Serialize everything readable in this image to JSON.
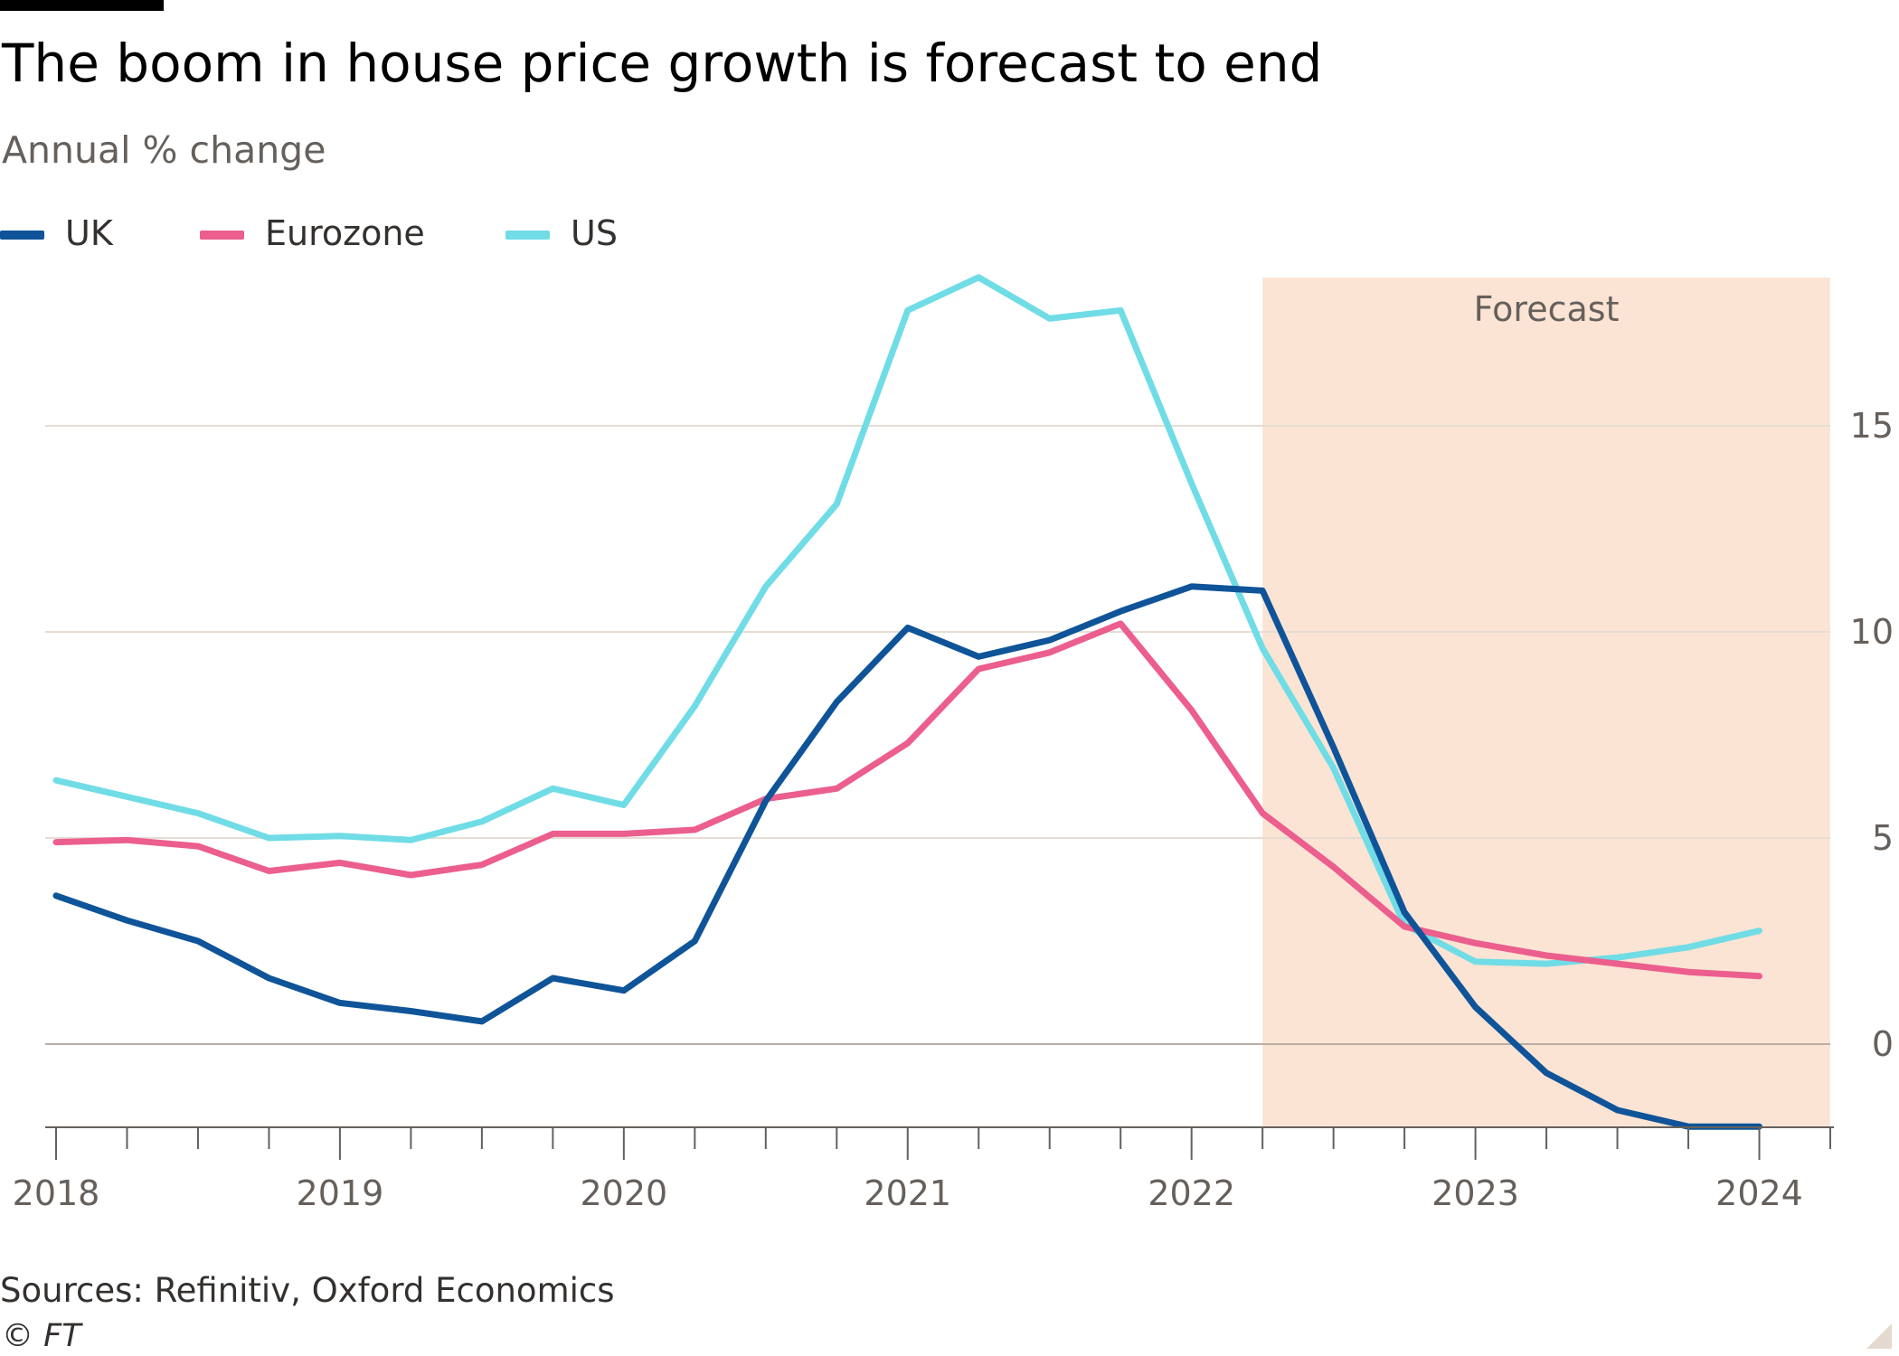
{
  "header": {
    "title": "The boom in house price growth is forecast to end",
    "subtitle": "Annual % change"
  },
  "legend": [
    {
      "name": "UK",
      "color": "#0f5499"
    },
    {
      "name": "Eurozone",
      "color": "#eb5e8d"
    },
    {
      "name": "US",
      "color": "#70dce6"
    }
  ],
  "footer": {
    "source": "Sources: Refinitiv, Oxford Economics",
    "copyright": "© FT"
  },
  "colors": {
    "uk": "#0f5499",
    "eurozone": "#eb5e8d",
    "us": "#70dce6",
    "forecast_shade": "#fbe4d4",
    "grid": "#e6ddd3",
    "zero_line": "#b8aea6",
    "tick_text": "#66605c"
  },
  "chart_data": {
    "type": "line",
    "title": "The boom in house price growth is forecast to end",
    "subtitle": "Annual % change",
    "x": [
      "2018 Q1",
      "2018 Q2",
      "2018 Q3",
      "2018 Q4",
      "2019 Q1",
      "2019 Q2",
      "2019 Q3",
      "2019 Q4",
      "2020 Q1",
      "2020 Q2",
      "2020 Q3",
      "2020 Q4",
      "2021 Q1",
      "2021 Q2",
      "2021 Q3",
      "2021 Q4",
      "2022 Q1",
      "2022 Q2",
      "2022 Q3",
      "2022 Q4",
      "2023 Q1",
      "2023 Q2",
      "2023 Q3",
      "2023 Q4",
      "2024 Q1",
      "2024 Q2"
    ],
    "series": [
      {
        "name": "UK",
        "values": [
          3.6,
          3.0,
          2.5,
          1.6,
          1.0,
          0.8,
          0.55,
          1.6,
          1.3,
          2.5,
          5.9,
          8.3,
          10.1,
          9.4,
          9.8,
          10.5,
          11.1,
          11.0,
          7.2,
          3.2,
          0.9,
          -0.7,
          -1.6,
          -2.0,
          -2.0,
          null
        ]
      },
      {
        "name": "Eurozone",
        "values": [
          4.9,
          4.95,
          4.8,
          4.2,
          4.4,
          4.1,
          4.35,
          5.1,
          5.1,
          5.2,
          5.95,
          6.2,
          7.3,
          9.1,
          9.5,
          10.2,
          8.1,
          5.6,
          4.3,
          2.85,
          2.45,
          2.15,
          1.95,
          1.75,
          1.65,
          null
        ]
      },
      {
        "name": "US",
        "values": [
          6.4,
          6.0,
          5.6,
          5.0,
          5.05,
          4.95,
          5.4,
          6.2,
          5.8,
          8.2,
          11.1,
          13.1,
          17.8,
          18.6,
          17.6,
          17.8,
          13.6,
          9.6,
          6.7,
          2.9,
          2.0,
          1.95,
          2.1,
          2.35,
          2.75,
          null
        ]
      }
    ],
    "x_ticks": [
      "2018",
      "2019",
      "2020",
      "2021",
      "2022",
      "2023",
      "2024"
    ],
    "y_ticks": [
      "0",
      "5",
      "10",
      "15"
    ],
    "ylim": [
      -2,
      19
    ],
    "forecast_label": "Forecast",
    "forecast_start": "2022 Q2",
    "grid": true,
    "legend_position": "top-left",
    "y_axis_side": "right"
  }
}
